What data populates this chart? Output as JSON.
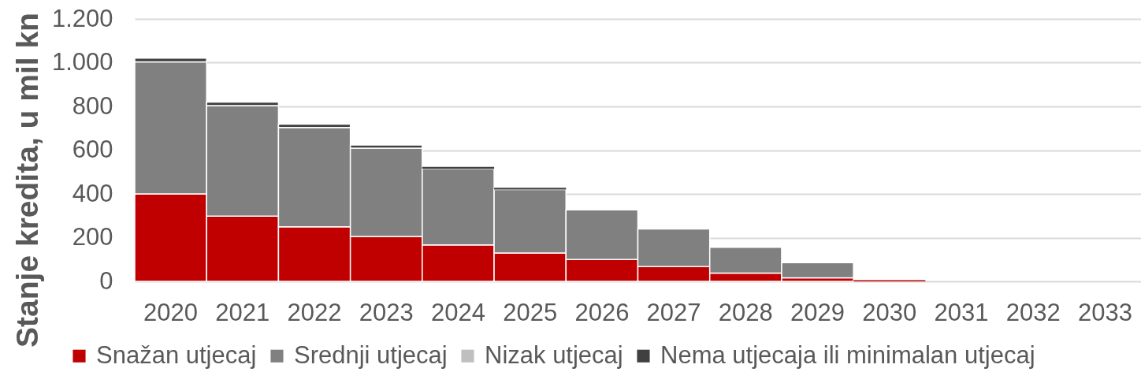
{
  "chart_data": {
    "type": "bar",
    "stacked": true,
    "ylabel": "Stanje kredita, u mil kn",
    "categories": [
      "2020",
      "2021",
      "2022",
      "2023",
      "2024",
      "2025",
      "2026",
      "2027",
      "2028",
      "2029",
      "2030",
      "2031",
      "2032",
      "2033"
    ],
    "series": [
      {
        "name": "Snažan utjecaj",
        "color": "#c00000",
        "values": [
          400,
          298,
          250,
          205,
          167,
          130,
          100,
          68,
          38,
          16,
          5,
          0,
          0,
          0
        ]
      },
      {
        "name": "Srednji utjecaj",
        "color": "#808080",
        "values": [
          604,
          506,
          454,
          404,
          347,
          290,
          227,
          172,
          118,
          70,
          0,
          0,
          0,
          0
        ]
      },
      {
        "name": "Nizak utjecaj",
        "color": "#bfbfbf",
        "values": [
          0,
          0,
          0,
          0,
          0,
          0,
          0,
          0,
          0,
          0,
          0,
          0,
          0,
          0
        ]
      },
      {
        "name": "Nema utjecaja ili minimalan utjecaj",
        "color": "#404040",
        "values": [
          17,
          16,
          15,
          14,
          9,
          8,
          0,
          0,
          0,
          0,
          0,
          0,
          0,
          0
        ]
      }
    ],
    "ylim": [
      0,
      1200
    ],
    "yticks": [
      0,
      200,
      400,
      600,
      800,
      {
        "value": 1000,
        "label": "1.000"
      },
      {
        "value": 1200,
        "label": "1.200"
      }
    ],
    "grid": "y",
    "legend": "bottom"
  }
}
